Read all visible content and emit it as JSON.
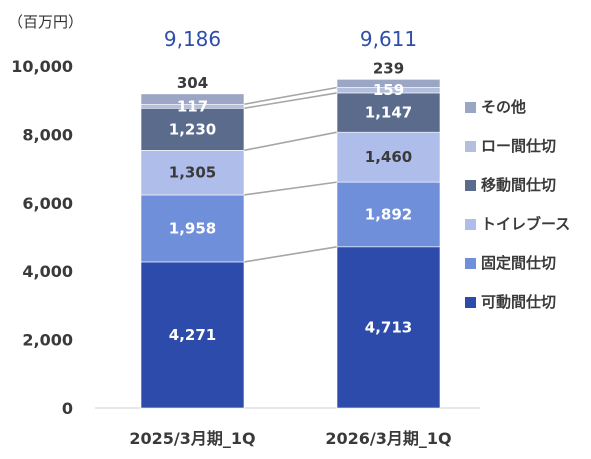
{
  "chart_data": {
    "type": "bar",
    "stacked": true,
    "unit_label": "（百万円）",
    "categories": [
      "2025/3月期_1Q",
      "2026/3月期_1Q"
    ],
    "totals": [
      9186,
      9611
    ],
    "totals_display": [
      "9,186",
      "9,611"
    ],
    "ylim": [
      0,
      10000
    ],
    "yticks": [
      0,
      2000,
      4000,
      6000,
      8000,
      10000
    ],
    "ytick_labels": [
      "0",
      "2,000",
      "4,000",
      "6,000",
      "8,000",
      "10,000"
    ],
    "grid": false,
    "legend_position": "right",
    "series": [
      {
        "name": "可動間仕切",
        "values": [
          4271,
          4713
        ],
        "labels": [
          "4,271",
          "4,713"
        ],
        "color": "#2D4BAA",
        "label_color": "#ffffff"
      },
      {
        "name": "固定間仕切",
        "values": [
          1958,
          1892
        ],
        "labels": [
          "1,958",
          "1,892"
        ],
        "color": "#6F8FDA",
        "label_color": "#ffffff"
      },
      {
        "name": "トイレブース",
        "values": [
          1305,
          1460
        ],
        "labels": [
          "1,305",
          "1,460"
        ],
        "color": "#AEBDEA",
        "label_color": "#3a3a3a"
      },
      {
        "name": "移動間仕切",
        "values": [
          1230,
          1147
        ],
        "labels": [
          "1,230",
          "1,147"
        ],
        "color": "#5A6B8C",
        "label_color": "#ffffff"
      },
      {
        "name": "ロー間仕切",
        "values": [
          117,
          159
        ],
        "labels": [
          "117",
          "159"
        ],
        "color": "#B4BEDD",
        "label_color": "#ffffff"
      },
      {
        "name": "その他",
        "values": [
          304,
          239
        ],
        "labels": [
          "304",
          "239"
        ],
        "color": "#9AA6C4",
        "label_color": "#3a3a3a"
      }
    ]
  }
}
